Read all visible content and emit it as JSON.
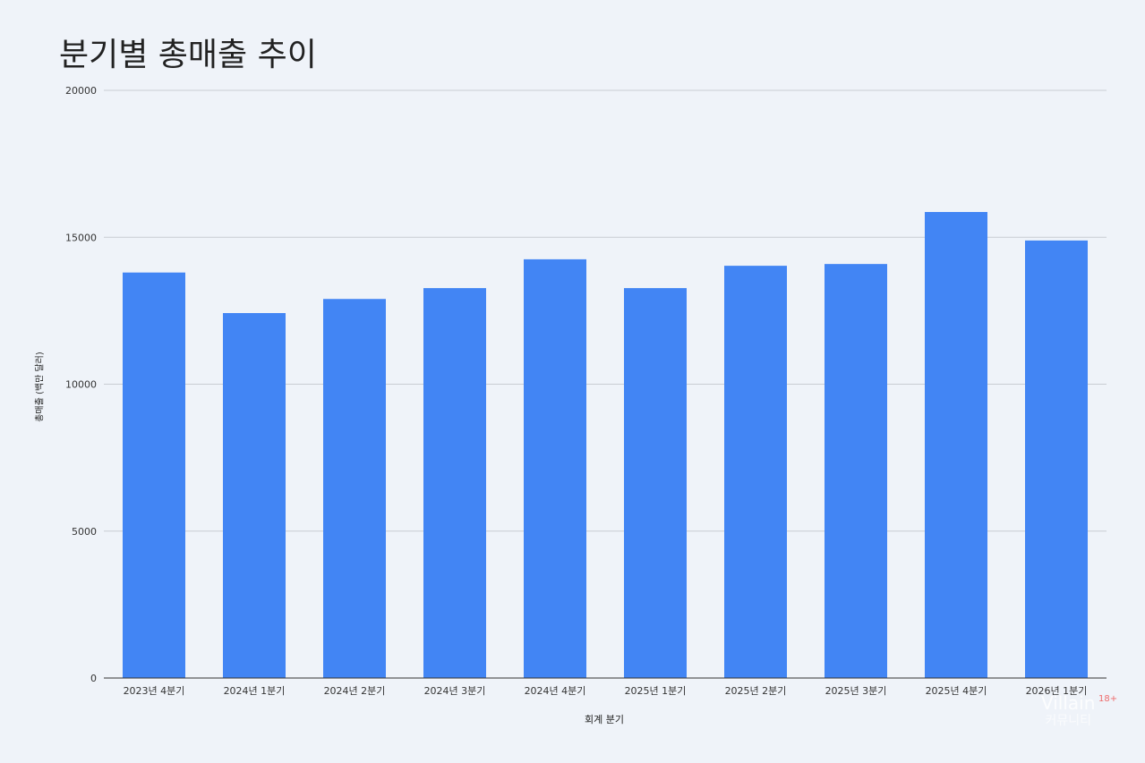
{
  "chart_data": {
    "type": "bar",
    "title": "분기별 총매출 추이",
    "xlabel": "회계 분기",
    "ylabel": "총매출 (백만 달러)",
    "categories": [
      "2023년 4분기",
      "2024년 1분기",
      "2024년 2분기",
      "2024년 3분기",
      "2024년 4분기",
      "2025년 1분기",
      "2025년 2분기",
      "2025년 3분기",
      "2025년 4분기",
      "2026년 1분기"
    ],
    "values": [
      13800,
      12420,
      12900,
      13270,
      14250,
      13270,
      14030,
      14090,
      15860,
      14890
    ],
    "ylim": [
      0,
      20000
    ],
    "yticks": [
      "0",
      "5000",
      "10000",
      "15000",
      "20000"
    ],
    "grid": true,
    "legend": "none",
    "bar_color": "#4285f4"
  },
  "watermark": {
    "brand": "Villain",
    "sub": "커뮤니티",
    "badge": "18+"
  }
}
